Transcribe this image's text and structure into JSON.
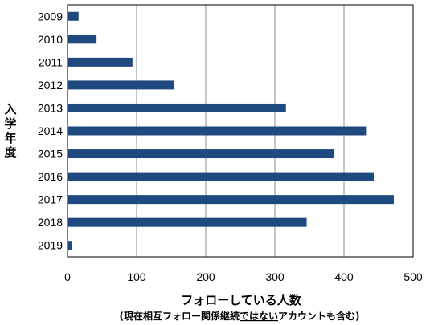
{
  "chart_data": {
    "type": "bar",
    "orientation": "horizontal",
    "categories": [
      "2009",
      "2010",
      "2011",
      "2012",
      "2013",
      "2014",
      "2015",
      "2016",
      "2017",
      "2018",
      "2019"
    ],
    "values": [
      16,
      42,
      94,
      154,
      316,
      433,
      386,
      443,
      472,
      346,
      7
    ],
    "xlabel": "フォローしている人数",
    "xlabel_note_before": "(現在相互フォロー関係継続",
    "xlabel_note_underlined": "ではない",
    "xlabel_note_after": "アカウントも含む)",
    "ylabel": "入学年度",
    "xlim": [
      0,
      500
    ],
    "xticks": [
      0,
      100,
      200,
      300,
      400,
      500
    ],
    "grid": true,
    "legend": "none",
    "bar_color": "#1f4a80",
    "grid_color": "#8c8c8c"
  }
}
